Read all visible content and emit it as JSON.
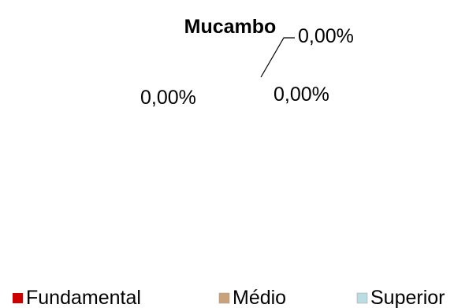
{
  "chart_data": {
    "type": "pie",
    "title": "Mucambo",
    "categories": [
      "Fundamental",
      "Médio",
      "Superior"
    ],
    "values": [
      0,
      0,
      0
    ],
    "data_labels": [
      "0,00%",
      "0,00%",
      "0,00%"
    ],
    "legend": {
      "placement": "bottom",
      "entries": [
        "Fundamental",
        "Médio",
        "Superior"
      ]
    },
    "colors": {
      "Fundamental": "#cc0000",
      "Médio": "#c9a27a",
      "Superior": "#b9dde3",
      "leader_line": "#000000",
      "text": "#000000"
    }
  }
}
